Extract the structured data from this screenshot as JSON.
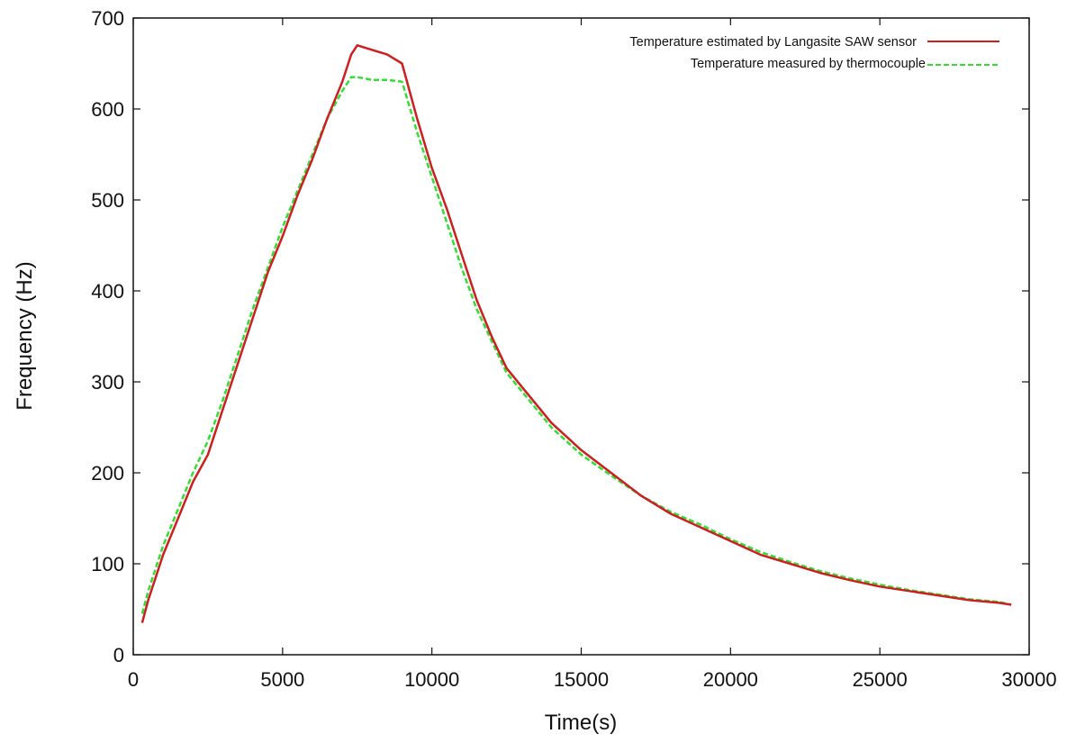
{
  "chart_data": {
    "type": "line",
    "title": "",
    "xlabel": "Time(s)",
    "ylabel": "Frequency (Hz)",
    "xlim": [
      0,
      30000
    ],
    "ylim": [
      0,
      700
    ],
    "xticks": [
      0,
      5000,
      10000,
      15000,
      20000,
      25000,
      30000
    ],
    "yticks": [
      0,
      100,
      200,
      300,
      400,
      500,
      600,
      700
    ],
    "xtick_labels": [
      "0",
      "5000",
      "10000",
      "15000",
      "20000",
      "25000",
      "30000"
    ],
    "ytick_labels": [
      "0",
      "100",
      "200",
      "300",
      "400",
      "500",
      "600",
      "700"
    ],
    "grid": false,
    "legend_position": "top-right",
    "series": [
      {
        "name": "Temperature estimated by Langasite SAW sensor",
        "color": "#cc1f1f",
        "style": "solid",
        "x": [
          300,
          500,
          1000,
          1500,
          2000,
          2500,
          3000,
          3500,
          4000,
          4500,
          5000,
          5500,
          6000,
          6500,
          7000,
          7300,
          7500,
          8000,
          8500,
          9000,
          9500,
          10000,
          10500,
          11000,
          11500,
          12000,
          12500,
          13000,
          14000,
          15000,
          16000,
          17000,
          18000,
          19000,
          20000,
          21000,
          22000,
          23000,
          24000,
          25000,
          26000,
          27000,
          28000,
          29000,
          29400
        ],
        "y": [
          35,
          60,
          110,
          150,
          190,
          220,
          270,
          320,
          370,
          420,
          460,
          505,
          545,
          590,
          630,
          660,
          670,
          665,
          660,
          650,
          590,
          535,
          490,
          440,
          390,
          350,
          315,
          295,
          255,
          225,
          200,
          175,
          155,
          140,
          125,
          110,
          100,
          90,
          82,
          75,
          70,
          65,
          60,
          57,
          55
        ]
      },
      {
        "name": "Temperature measured by thermocouple",
        "color": "#33dd33",
        "style": "dashed",
        "x": [
          300,
          500,
          1000,
          1500,
          2000,
          2500,
          3000,
          3500,
          4000,
          4500,
          5000,
          5500,
          6000,
          6500,
          7000,
          7300,
          7500,
          8000,
          8500,
          9000,
          9500,
          10000,
          10500,
          11000,
          11500,
          12000,
          12500,
          13000,
          14000,
          15000,
          16000,
          17000,
          18000,
          19000,
          20000,
          21000,
          22000,
          23000,
          24000,
          25000,
          26000,
          27000,
          28000,
          29000,
          29400
        ],
        "y": [
          45,
          70,
          120,
          160,
          200,
          235,
          280,
          330,
          380,
          425,
          470,
          510,
          550,
          590,
          620,
          635,
          635,
          632,
          632,
          630,
          575,
          525,
          475,
          425,
          380,
          345,
          310,
          290,
          250,
          220,
          197,
          175,
          157,
          143,
          127,
          113,
          102,
          92,
          84,
          77,
          71,
          66,
          61,
          58,
          55
        ]
      }
    ]
  }
}
